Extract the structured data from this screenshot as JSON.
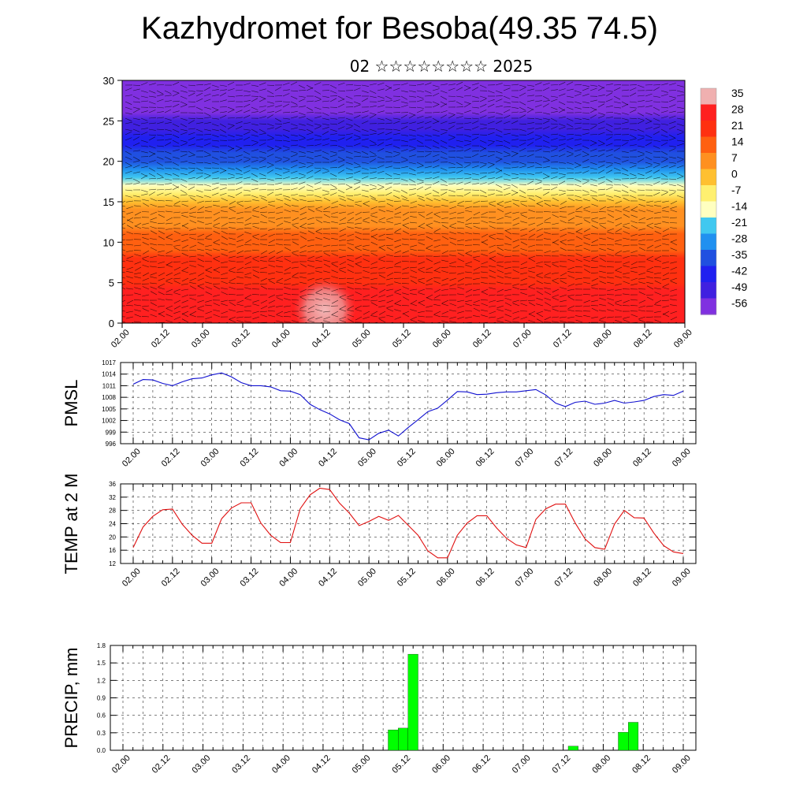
{
  "title": "Kazhydromet for Besoba(49.35 74.5)",
  "subtitle": "02 ☆☆☆☆☆☆☆☆ 2025",
  "time_ticks": [
    "02.00",
    "02.12",
    "03.00",
    "03.12",
    "04.00",
    "04.12",
    "05.00",
    "05.12",
    "06.00",
    "06.12",
    "07.00",
    "07.12",
    "08.00",
    "08.12",
    "09.00"
  ],
  "chart_data": [
    {
      "type": "heatmap",
      "title": "",
      "xlabel": "",
      "ylabel": "",
      "ylim": [
        0,
        30
      ],
      "yticks": [
        0,
        5,
        10,
        15,
        20,
        25,
        30
      ],
      "colorbar": {
        "labels": [
          "35",
          "28",
          "21",
          "14",
          "7",
          "0",
          "-7",
          "-14",
          "-21",
          "-28",
          "-35",
          "-42",
          "-49",
          "-56"
        ],
        "values": [
          35,
          28,
          21,
          14,
          7,
          0,
          -7,
          -14,
          -21,
          -28,
          -35,
          -42,
          -49,
          -56
        ],
        "colors": [
          "#f0b0b0",
          "#ff2020",
          "#ff3010",
          "#ff6010",
          "#ff9020",
          "#ffc030",
          "#fff070",
          "#ffffc0",
          "#40c8f0",
          "#2090f0",
          "#2050e0",
          "#2020f0",
          "#4020e0",
          "#8030e0"
        ]
      },
      "temperature_profile": {
        "height": [
          0,
          5,
          10,
          14,
          16,
          20,
          23,
          26,
          30
        ],
        "value": [
          28,
          24,
          14,
          4,
          -10,
          -35,
          -45,
          -55,
          -56
        ]
      },
      "wind_barbs": "dense black wind barbs over full field"
    },
    {
      "type": "line",
      "ylabel": "PMSL",
      "ylim": [
        996,
        1017
      ],
      "yticks": [
        996,
        999,
        1002,
        1005,
        1008,
        1011,
        1014,
        1017
      ],
      "color": "#1010d0",
      "x": [
        0,
        1,
        2,
        3,
        4,
        5,
        6,
        7,
        8,
        9,
        10,
        11,
        12,
        13,
        14,
        15,
        16,
        17,
        18,
        19,
        20,
        21,
        22,
        23,
        24,
        25,
        26,
        27,
        28,
        29,
        30,
        31,
        32,
        33,
        34,
        35,
        36,
        37,
        38,
        39,
        40,
        41,
        42,
        43,
        44,
        45,
        46,
        47,
        48,
        49,
        50,
        51,
        52,
        53,
        54,
        55,
        56
      ],
      "values": [
        1011.4,
        1012.6,
        1012.5,
        1011.6,
        1011.0,
        1012.0,
        1012.8,
        1013.0,
        1013.8,
        1014.3,
        1013.3,
        1011.8,
        1011.0,
        1011.0,
        1010.7,
        1009.7,
        1009.6,
        1008.7,
        1006.2,
        1004.8,
        1003.7,
        1002.2,
        1001.2,
        997.5,
        997.0,
        998.7,
        999.5,
        998.0,
        1000.2,
        1002.2,
        1004.3,
        1005.2,
        1007.3,
        1009.5,
        1009.4,
        1008.7,
        1008.8,
        1009.2,
        1009.4,
        1009.4,
        1009.7,
        1010.0,
        1008.6,
        1006.5,
        1005.6,
        1006.7,
        1007.0,
        1006.2,
        1006.5,
        1007.2,
        1006.5,
        1006.8,
        1007.2,
        1008.2,
        1008.7,
        1008.5,
        1009.6
      ]
    },
    {
      "type": "line",
      "ylabel": "TEMP at 2 M",
      "ylim": [
        12,
        36
      ],
      "yticks": [
        12,
        16,
        20,
        24,
        28,
        32,
        36
      ],
      "color": "#e01010",
      "x": [
        0,
        1,
        2,
        3,
        4,
        5,
        6,
        7,
        8,
        9,
        10,
        11,
        12,
        13,
        14,
        15,
        16,
        17,
        18,
        19,
        20,
        21,
        22,
        23,
        24,
        25,
        26,
        27,
        28,
        29,
        30,
        31,
        32,
        33,
        34,
        35,
        36,
        37,
        38,
        39,
        40,
        41,
        42,
        43,
        44,
        45,
        46,
        47,
        48,
        49,
        50,
        51,
        52,
        53,
        54,
        55,
        56
      ],
      "values": [
        16.8,
        23,
        26.2,
        28.2,
        28.4,
        23.8,
        20.5,
        18.1,
        18.1,
        25.5,
        28.7,
        30.3,
        30.3,
        24.2,
        20.5,
        18.3,
        18.3,
        28.5,
        32.7,
        34.7,
        34.3,
        30.2,
        27.2,
        23.4,
        24.7,
        26.2,
        25,
        26.5,
        23.5,
        20.5,
        15.8,
        13.7,
        13.7,
        20.5,
        24.2,
        26.4,
        26.4,
        22.7,
        19.6,
        17.6,
        16.8,
        25.3,
        28.5,
        29.9,
        29.9,
        24.2,
        19.4,
        16.8,
        16.3,
        23.9,
        28,
        25.8,
        25.7,
        21.2,
        17.4,
        15.5,
        15
      ]
    },
    {
      "type": "bar",
      "ylabel": "PRECIP, mm",
      "ylim": [
        0,
        1.8
      ],
      "yticks": [
        "0.0",
        "0.3",
        "0.6",
        "0.9",
        "1.2",
        "1.5",
        "1.8"
      ],
      "color": "#00ff00",
      "x": [
        27,
        28,
        29,
        45,
        50,
        51
      ],
      "values": [
        0.35,
        0.38,
        1.65,
        0.07,
        0.31,
        0.48
      ]
    }
  ]
}
